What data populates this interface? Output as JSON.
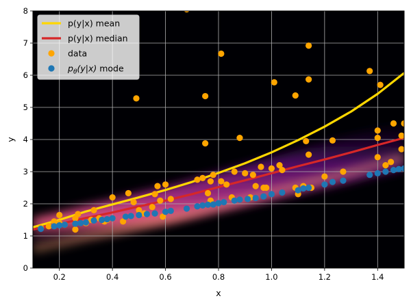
{
  "chart_data": {
    "type": "scatter",
    "xlabel": "x",
    "ylabel": "y",
    "xlim": [
      0.1,
      1.5
    ],
    "ylim": [
      0,
      8
    ],
    "xticks": [
      "0.2",
      "0.4",
      "0.6",
      "0.8",
      "1.0",
      "1.2",
      "1.4"
    ],
    "xtick_values": [
      0.2,
      0.4,
      0.6,
      0.8,
      1.0,
      1.2,
      1.4
    ],
    "yticks": [
      "0",
      "1",
      "2",
      "3",
      "4",
      "5",
      "6",
      "7",
      "8"
    ],
    "ytick_values": [
      0,
      1,
      2,
      3,
      4,
      5,
      6,
      7,
      8
    ],
    "grid": true,
    "background": "density heatmap (inferno colormap)",
    "legend_position": "upper-left",
    "legend": [
      {
        "label": "p(y|x) mean",
        "kind": "line",
        "color": "#FFD700"
      },
      {
        "label": "p(y|x) median",
        "kind": "line",
        "color": "#D62728"
      },
      {
        "label": "data",
        "kind": "marker",
        "color": "#FFA500"
      },
      {
        "label": "p_θ(y|x) mode",
        "kind": "marker",
        "color": "#1F77B4"
      }
    ],
    "series": [
      {
        "name": "p(y|x) mean",
        "type": "line",
        "color": "#FFD700",
        "x": [
          0.1,
          0.2,
          0.3,
          0.4,
          0.5,
          0.6,
          0.7,
          0.8,
          0.9,
          1.0,
          1.1,
          1.2,
          1.3,
          1.4,
          1.5
        ],
        "y": [
          1.27,
          1.5,
          1.76,
          1.98,
          2.2,
          2.43,
          2.68,
          2.96,
          3.26,
          3.6,
          3.98,
          4.4,
          4.87,
          5.42,
          6.07
        ]
      },
      {
        "name": "p(y|x) median",
        "type": "line",
        "color": "#D62728",
        "x": [
          0.1,
          0.2,
          0.3,
          0.4,
          0.5,
          0.6,
          0.7,
          0.8,
          0.9,
          1.0,
          1.1,
          1.2,
          1.3,
          1.4,
          1.5
        ],
        "y": [
          1.2,
          1.37,
          1.56,
          1.73,
          1.92,
          2.1,
          2.3,
          2.52,
          2.73,
          2.95,
          3.17,
          3.38,
          3.6,
          3.83,
          4.05
        ]
      },
      {
        "name": "data",
        "type": "scatter",
        "color": "#FFA500",
        "points": [
          [
            0.13,
            1.25
          ],
          [
            0.16,
            1.3
          ],
          [
            0.18,
            1.45
          ],
          [
            0.2,
            1.4
          ],
          [
            0.2,
            1.65
          ],
          [
            0.22,
            1.35
          ],
          [
            0.26,
            1.55
          ],
          [
            0.26,
            1.2
          ],
          [
            0.27,
            1.68
          ],
          [
            0.3,
            1.4
          ],
          [
            0.32,
            1.5
          ],
          [
            0.33,
            1.8
          ],
          [
            0.35,
            1.55
          ],
          [
            0.37,
            1.45
          ],
          [
            0.38,
            1.5
          ],
          [
            0.4,
            2.2
          ],
          [
            0.4,
            1.55
          ],
          [
            0.44,
            1.45
          ],
          [
            0.45,
            1.6
          ],
          [
            0.46,
            2.33
          ],
          [
            0.48,
            2.05
          ],
          [
            0.49,
            5.28
          ],
          [
            0.5,
            1.8
          ],
          [
            0.52,
            1.7
          ],
          [
            0.55,
            1.9
          ],
          [
            0.56,
            2.3
          ],
          [
            0.57,
            2.55
          ],
          [
            0.58,
            2.1
          ],
          [
            0.59,
            1.6
          ],
          [
            0.6,
            2.6
          ],
          [
            0.62,
            2.15
          ],
          [
            0.68,
            8.05
          ],
          [
            0.72,
            2.75
          ],
          [
            0.74,
            2.8
          ],
          [
            0.75,
            3.88
          ],
          [
            0.75,
            5.35
          ],
          [
            0.76,
            2.33
          ],
          [
            0.77,
            2.1
          ],
          [
            0.77,
            2.7
          ],
          [
            0.78,
            2.9
          ],
          [
            0.81,
            6.67
          ],
          [
            0.81,
            2.7
          ],
          [
            0.83,
            2.6
          ],
          [
            0.85,
            2.2
          ],
          [
            0.86,
            3.0
          ],
          [
            0.88,
            4.05
          ],
          [
            0.9,
            2.95
          ],
          [
            0.92,
            2.2
          ],
          [
            0.93,
            2.9
          ],
          [
            0.94,
            2.55
          ],
          [
            0.96,
            3.15
          ],
          [
            0.97,
            2.5
          ],
          [
            0.98,
            2.5
          ],
          [
            1.0,
            3.1
          ],
          [
            1.01,
            5.78
          ],
          [
            1.03,
            3.2
          ],
          [
            1.04,
            3.05
          ],
          [
            1.09,
            2.5
          ],
          [
            1.09,
            5.37
          ],
          [
            1.1,
            2.3
          ],
          [
            1.12,
            2.55
          ],
          [
            1.13,
            3.95
          ],
          [
            1.14,
            3.53
          ],
          [
            1.14,
            6.92
          ],
          [
            1.14,
            5.87
          ],
          [
            1.15,
            2.5
          ],
          [
            1.2,
            2.85
          ],
          [
            1.23,
            3.97
          ],
          [
            1.27,
            3.0
          ],
          [
            1.37,
            6.13
          ],
          [
            1.4,
            4.28
          ],
          [
            1.4,
            4.05
          ],
          [
            1.4,
            3.45
          ],
          [
            1.41,
            5.7
          ],
          [
            1.43,
            3.2
          ],
          [
            1.45,
            3.3
          ],
          [
            1.46,
            4.5
          ],
          [
            1.49,
            3.7
          ],
          [
            1.49,
            4.12
          ],
          [
            1.5,
            4.5
          ]
        ]
      },
      {
        "name": "p_θ(y|x) mode",
        "type": "scatter",
        "color": "#1F77B4",
        "points": [
          [
            0.13,
            1.22
          ],
          [
            0.18,
            1.3
          ],
          [
            0.2,
            1.33
          ],
          [
            0.22,
            1.35
          ],
          [
            0.26,
            1.38
          ],
          [
            0.28,
            1.4
          ],
          [
            0.3,
            1.42
          ],
          [
            0.33,
            1.48
          ],
          [
            0.36,
            1.5
          ],
          [
            0.38,
            1.52
          ],
          [
            0.4,
            1.55
          ],
          [
            0.45,
            1.6
          ],
          [
            0.47,
            1.62
          ],
          [
            0.5,
            1.65
          ],
          [
            0.53,
            1.68
          ],
          [
            0.56,
            1.7
          ],
          [
            0.6,
            1.75
          ],
          [
            0.62,
            1.78
          ],
          [
            0.68,
            1.85
          ],
          [
            0.72,
            1.92
          ],
          [
            0.74,
            1.95
          ],
          [
            0.76,
            1.97
          ],
          [
            0.78,
            1.98
          ],
          [
            0.8,
            2.02
          ],
          [
            0.82,
            2.05
          ],
          [
            0.86,
            2.1
          ],
          [
            0.88,
            2.13
          ],
          [
            0.91,
            2.15
          ],
          [
            0.94,
            2.18
          ],
          [
            0.97,
            2.23
          ],
          [
            1.0,
            2.3
          ],
          [
            1.04,
            2.35
          ],
          [
            1.1,
            2.42
          ],
          [
            1.12,
            2.48
          ],
          [
            1.14,
            2.5
          ],
          [
            1.2,
            2.6
          ],
          [
            1.23,
            2.68
          ],
          [
            1.27,
            2.72
          ],
          [
            1.37,
            2.9
          ],
          [
            1.4,
            2.95
          ],
          [
            1.43,
            3.0
          ],
          [
            1.46,
            3.05
          ],
          [
            1.48,
            3.08
          ],
          [
            1.5,
            3.1
          ]
        ]
      }
    ]
  }
}
